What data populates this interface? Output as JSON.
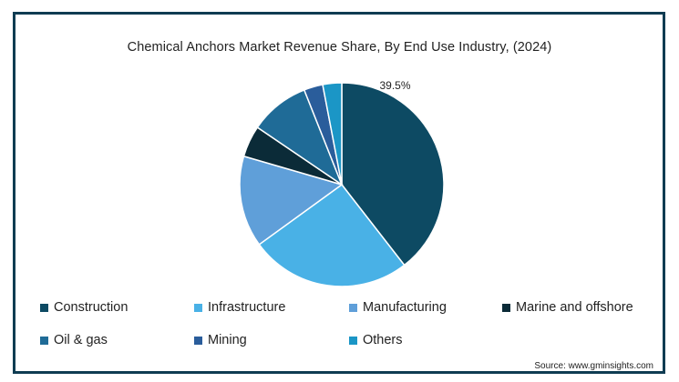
{
  "chart_data": {
    "type": "pie",
    "title": "Chemical Anchors Market Revenue Share, By End Use Industry, (2024)",
    "slices": [
      {
        "label": "Construction",
        "value": 39.5,
        "color": "#0d4a63",
        "data_label": "39.5%"
      },
      {
        "label": "Infrastructure",
        "value": 25.5,
        "color": "#49b1e6"
      },
      {
        "label": "Manufacturing",
        "value": 14.5,
        "color": "#5f9fd9"
      },
      {
        "label": "Marine and offshore",
        "value": 5.0,
        "color": "#0b2b38"
      },
      {
        "label": "Oil & gas",
        "value": 9.5,
        "color": "#1f6b97"
      },
      {
        "label": "Mining",
        "value": 3.0,
        "color": "#2a5d9b"
      },
      {
        "label": "Others",
        "value": 3.0,
        "color": "#1b96c6"
      }
    ],
    "legend": [
      "Construction",
      "Infrastructure",
      "Manufacturing",
      "Marine and offshore",
      "Oil & gas",
      "Mining",
      "Others"
    ],
    "legend_position": "bottom",
    "source": "Source: www.gminsights.com"
  }
}
